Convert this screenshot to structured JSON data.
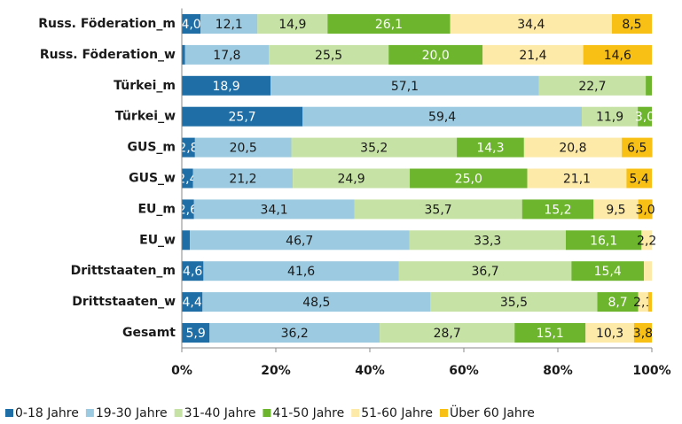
{
  "chart_data": {
    "type": "stacked-bar-horizontal",
    "categories": [
      "Russ. Föderation_m",
      "Russ. Föderation_w",
      "Türkei_m",
      "Türkei_w",
      "GUS_m",
      "GUS_w",
      "EU_m",
      "EU_w",
      "Drittstaaten_m",
      "Drittstaaten_w",
      "Gesamt"
    ],
    "series": [
      {
        "name": "0-18 Jahre",
        "color": "#1f6fa6",
        "label_color": "#ffffff",
        "values": [
          4.0,
          0.7,
          18.9,
          25.7,
          2.8,
          2.4,
          2.6,
          1.7,
          4.6,
          4.4,
          5.9
        ],
        "value_labels": [
          "4,0",
          null,
          "18,9",
          "25,7",
          "2,8",
          "2,4",
          "2,6",
          null,
          "4,6",
          "4,4",
          "5,9"
        ]
      },
      {
        "name": "19-30 Jahre",
        "color": "#9ccae0",
        "label_color": "#1a1a1a",
        "values": [
          12.1,
          17.8,
          57.1,
          59.4,
          20.5,
          21.2,
          34.1,
          46.7,
          41.6,
          48.5,
          36.2
        ],
        "value_labels": [
          "12,1",
          "17,8",
          "57,1",
          "59,4",
          "20,5",
          "21,2",
          "34,1",
          "46,7",
          "41,6",
          "48,5",
          "36,2"
        ]
      },
      {
        "name": "31-40 Jahre",
        "color": "#c6e2a4",
        "label_color": "#1a1a1a",
        "values": [
          14.9,
          25.5,
          22.7,
          11.9,
          35.2,
          24.9,
          35.7,
          33.3,
          36.7,
          35.5,
          28.7
        ],
        "value_labels": [
          "14,9",
          "25,5",
          "22,7",
          "11,9",
          "35,2",
          "24,9",
          "35,7",
          "33,3",
          "36,7",
          "35,5",
          "28,7"
        ]
      },
      {
        "name": "41-50 Jahre",
        "color": "#6cb52d",
        "label_color": "#ffffff",
        "values": [
          26.1,
          20.0,
          1.3,
          3.0,
          14.3,
          25.0,
          15.2,
          16.1,
          15.4,
          8.7,
          15.1
        ],
        "value_labels": [
          "26,1",
          "20,0",
          null,
          "3,0",
          "14,3",
          "25,0",
          "15,2",
          "16,1",
          "15,4",
          "8,7",
          "15,1"
        ]
      },
      {
        "name": "51-60 Jahre",
        "color": "#feeaa8",
        "label_color": "#1a1a1a",
        "values": [
          34.4,
          21.4,
          0,
          0,
          20.8,
          21.1,
          9.5,
          2.2,
          1.7,
          2.1,
          10.3
        ],
        "value_labels": [
          "34,4",
          "21,4",
          null,
          null,
          "20,8",
          "21,1",
          "9,5",
          "2,2",
          null,
          "2,1",
          "10,3"
        ]
      },
      {
        "name": "Über 60 Jahre",
        "color": "#f8c015",
        "label_color": "#1a1a1a",
        "values": [
          8.5,
          14.6,
          0,
          0,
          6.5,
          5.4,
          3.0,
          0,
          0,
          0.8,
          3.8
        ],
        "value_labels": [
          "8,5",
          "14,6",
          null,
          null,
          "6,5",
          "5,4",
          "3,0",
          null,
          null,
          null,
          "3,8"
        ]
      }
    ],
    "xlim": [
      0,
      100
    ],
    "xticks": [
      {
        "value": 0,
        "label": "0%"
      },
      {
        "value": 20,
        "label": "20%"
      },
      {
        "value": 40,
        "label": "40%"
      },
      {
        "value": 60,
        "label": "60%"
      },
      {
        "value": 80,
        "label": "80%"
      },
      {
        "value": 100,
        "label": "100%"
      }
    ],
    "legend": "bottom"
  }
}
